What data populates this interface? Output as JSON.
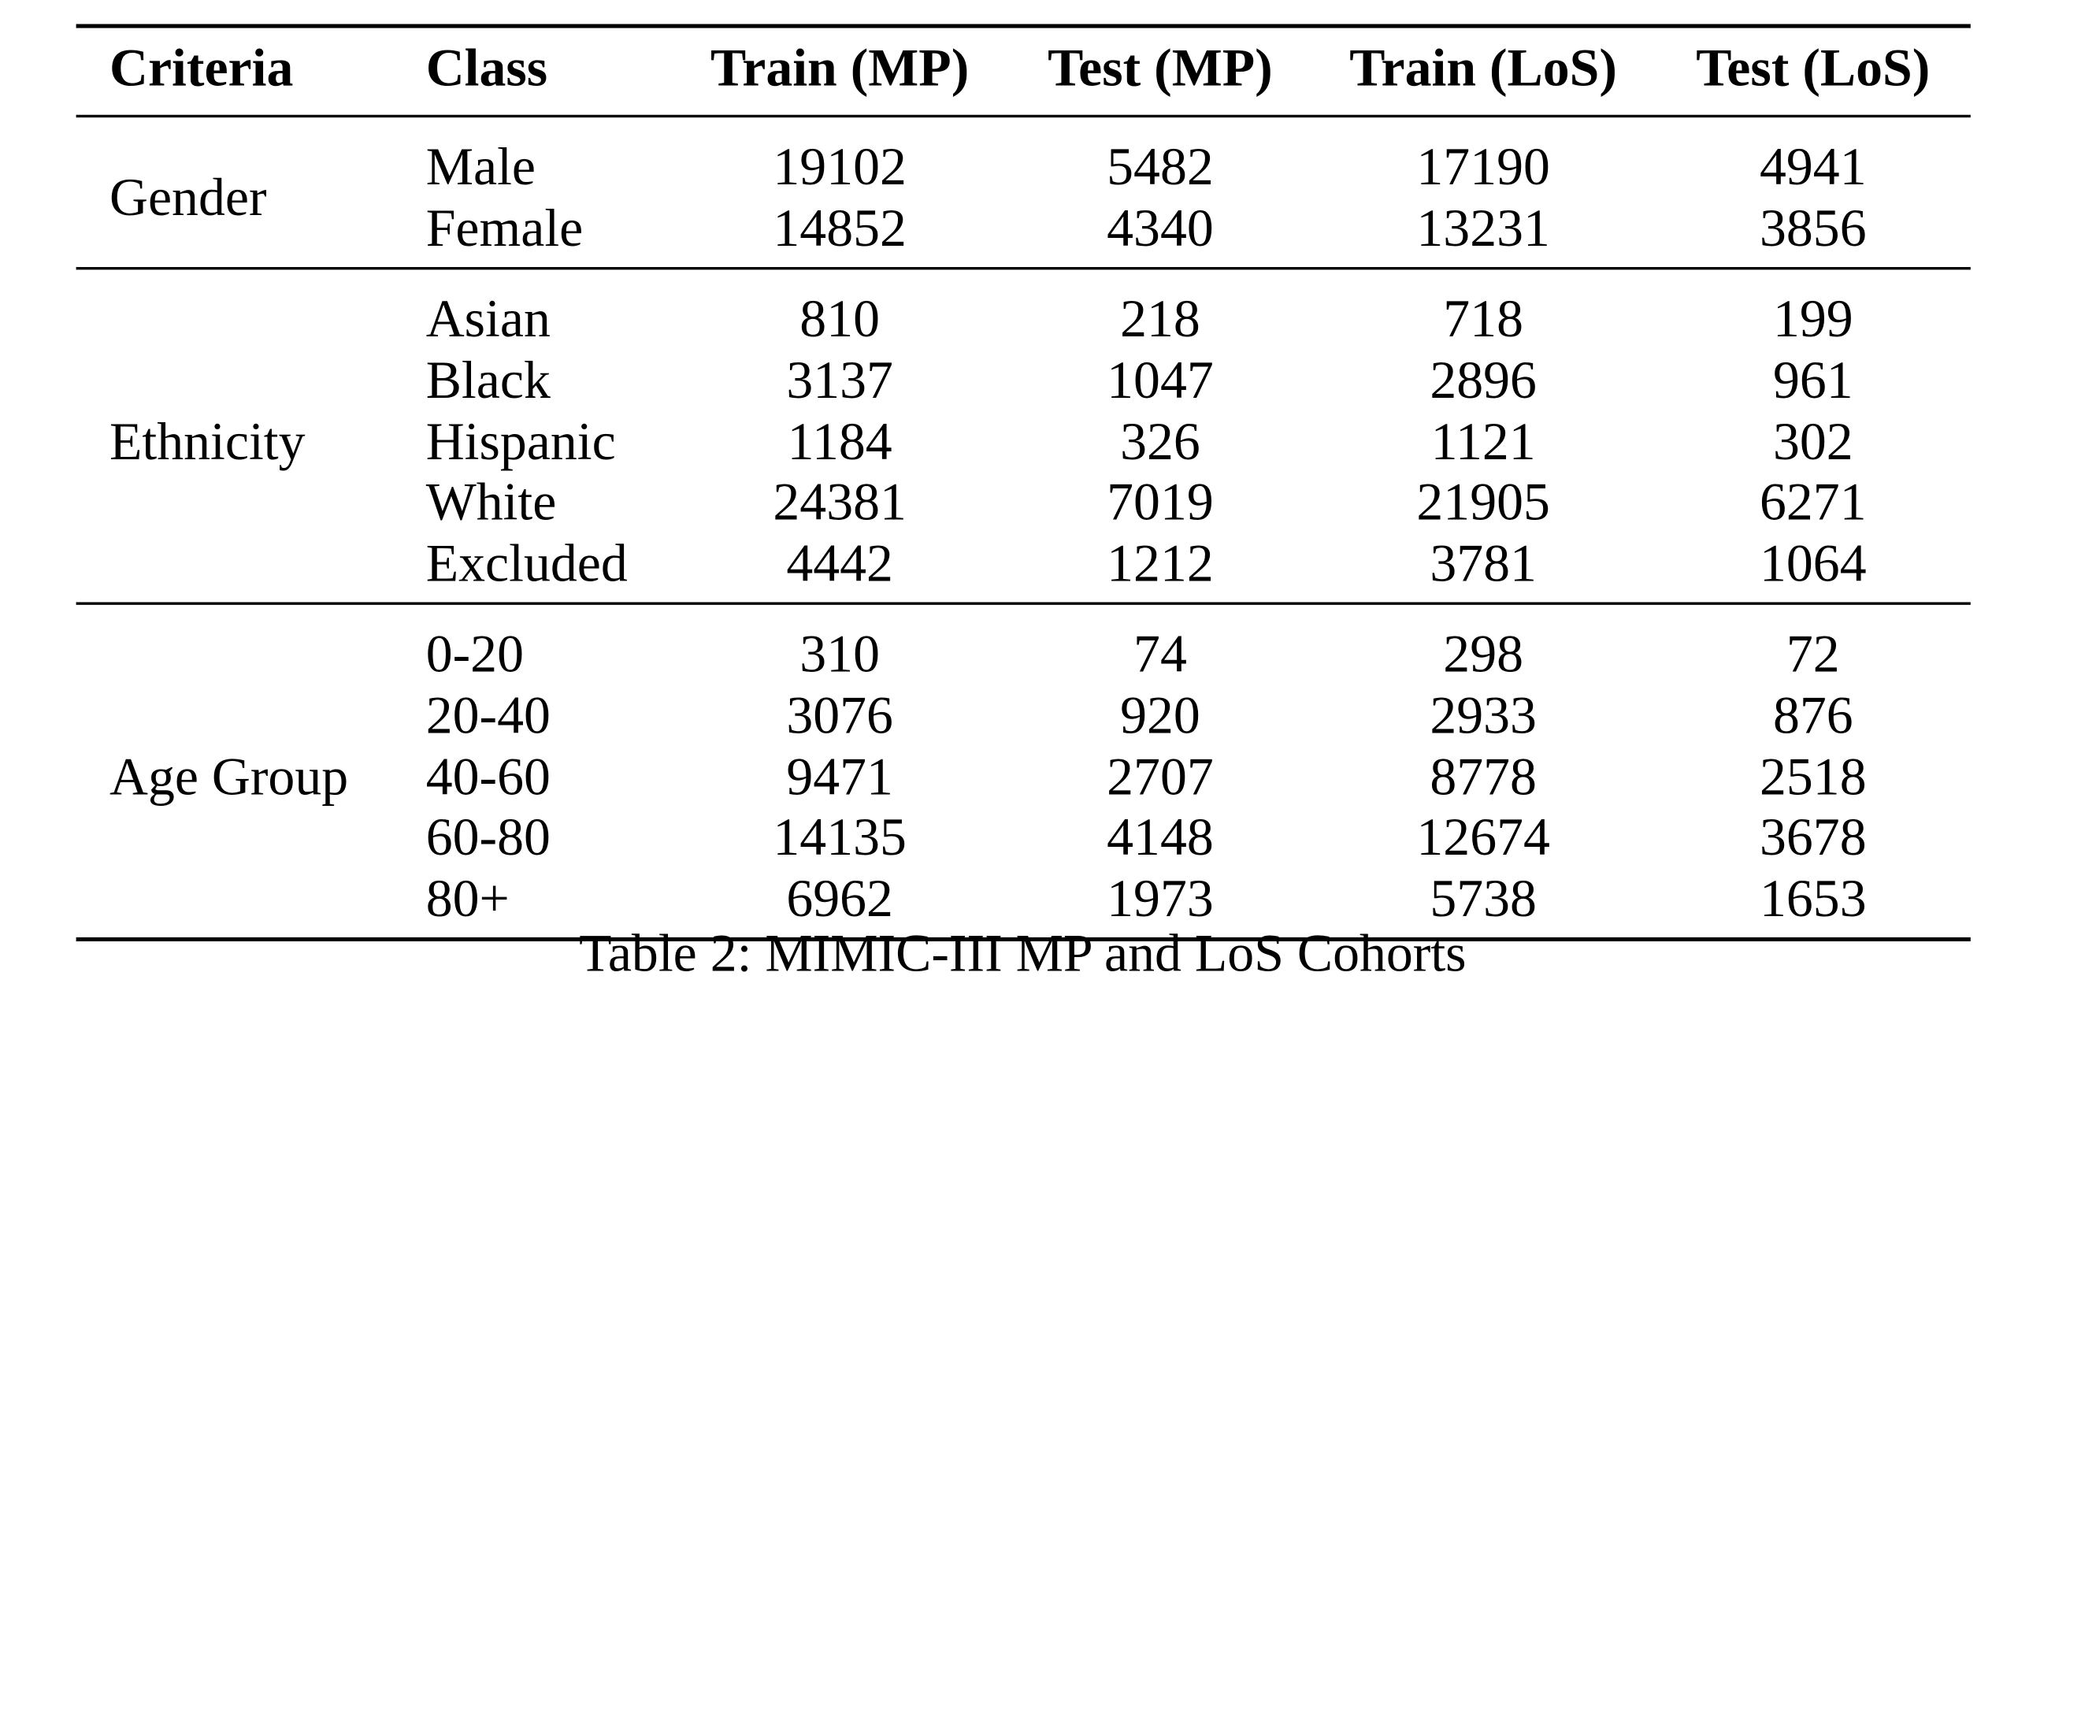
{
  "table": {
    "headers": [
      "Criteria",
      "Class",
      "Train (MP)",
      "Test (MP)",
      "Train (LoS)",
      "Test (LoS)"
    ],
    "groups": [
      {
        "criteria": "Gender",
        "rows": [
          {
            "class": "Male",
            "train_mp": "19102",
            "test_mp": "5482",
            "train_los": "17190",
            "test_los": "4941"
          },
          {
            "class": "Female",
            "train_mp": "14852",
            "test_mp": "4340",
            "train_los": "13231",
            "test_los": "3856"
          }
        ]
      },
      {
        "criteria": "Ethnicity",
        "rows": [
          {
            "class": "Asian",
            "train_mp": "810",
            "test_mp": "218",
            "train_los": "718",
            "test_los": "199"
          },
          {
            "class": "Black",
            "train_mp": "3137",
            "test_mp": "1047",
            "train_los": "2896",
            "test_los": "961"
          },
          {
            "class": "Hispanic",
            "train_mp": "1184",
            "test_mp": "326",
            "train_los": "1121",
            "test_los": "302"
          },
          {
            "class": "White",
            "train_mp": "24381",
            "test_mp": "7019",
            "train_los": "21905",
            "test_los": "6271"
          },
          {
            "class": "Excluded",
            "train_mp": "4442",
            "test_mp": "1212",
            "train_los": "3781",
            "test_los": "1064"
          }
        ]
      },
      {
        "criteria": "Age Group",
        "rows": [
          {
            "class": "0-20",
            "train_mp": "310",
            "test_mp": "74",
            "train_los": "298",
            "test_los": "72"
          },
          {
            "class": "20-40",
            "train_mp": "3076",
            "test_mp": "920",
            "train_los": "2933",
            "test_los": "876"
          },
          {
            "class": "40-60",
            "train_mp": "9471",
            "test_mp": "2707",
            "train_los": "8778",
            "test_los": "2518"
          },
          {
            "class": "60-80",
            "train_mp": "14135",
            "test_mp": "4148",
            "train_los": "12674",
            "test_los": "3678"
          },
          {
            "class": "80+",
            "train_mp": "6962",
            "test_mp": "1973",
            "train_los": "5738",
            "test_los": "1653"
          }
        ]
      }
    ]
  },
  "caption": "Table 2: MIMIC-III MP and LoS Cohorts"
}
